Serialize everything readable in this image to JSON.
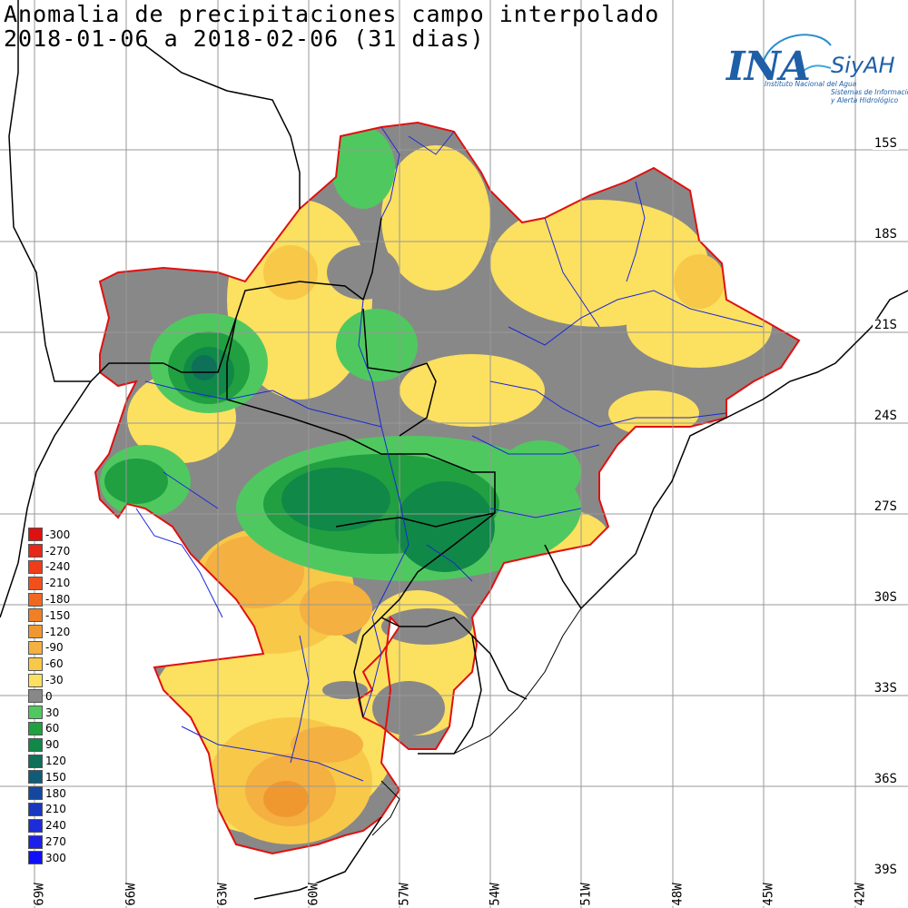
{
  "title": {
    "line1": "Anomalia de precipitaciones campo interpolado",
    "line2": "2018-01-06 a 2018-02-06 (31 dias)"
  },
  "logo": {
    "ina": "INA",
    "siyah": "SiyAH",
    "institute": "Instituto Nacional del Agua",
    "system_line1": "Sistemas de Información",
    "system_line2": "y Alerta Hidrológico"
  },
  "lat_labels": [
    "15S",
    "18S",
    "21S",
    "24S",
    "27S",
    "30S",
    "33S",
    "36S",
    "39S"
  ],
  "lon_labels": [
    "69W",
    "66W",
    "63W",
    "60W",
    "57W",
    "54W",
    "51W",
    "48W",
    "45W",
    "42W"
  ],
  "legend": [
    {
      "label": "-300",
      "color": "#e01010"
    },
    {
      "label": "-270",
      "color": "#e82818"
    },
    {
      "label": "-240",
      "color": "#f03c18"
    },
    {
      "label": "-210",
      "color": "#f0501c"
    },
    {
      "label": "-180",
      "color": "#f06820"
    },
    {
      "label": "-150",
      "color": "#f08024"
    },
    {
      "label": "-120",
      "color": "#f09830"
    },
    {
      "label": "-90",
      "color": "#f4b040"
    },
    {
      "label": "-60",
      "color": "#f8c848"
    },
    {
      "label": "-30",
      "color": "#fce060"
    },
    {
      "label": "0",
      "color": "#888888"
    },
    {
      "label": "30",
      "color": "#50c860"
    },
    {
      "label": "60",
      "color": "#20a040"
    },
    {
      "label": "90",
      "color": "#108848"
    },
    {
      "label": "120",
      "color": "#0e7058"
    },
    {
      "label": "150",
      "color": "#105c78"
    },
    {
      "label": "180",
      "color": "#1448a0"
    },
    {
      "label": "210",
      "color": "#1838c0"
    },
    {
      "label": "240",
      "color": "#1c2cd8"
    },
    {
      "label": "270",
      "color": "#1c20e8"
    },
    {
      "label": "300",
      "color": "#1010f8"
    }
  ]
}
